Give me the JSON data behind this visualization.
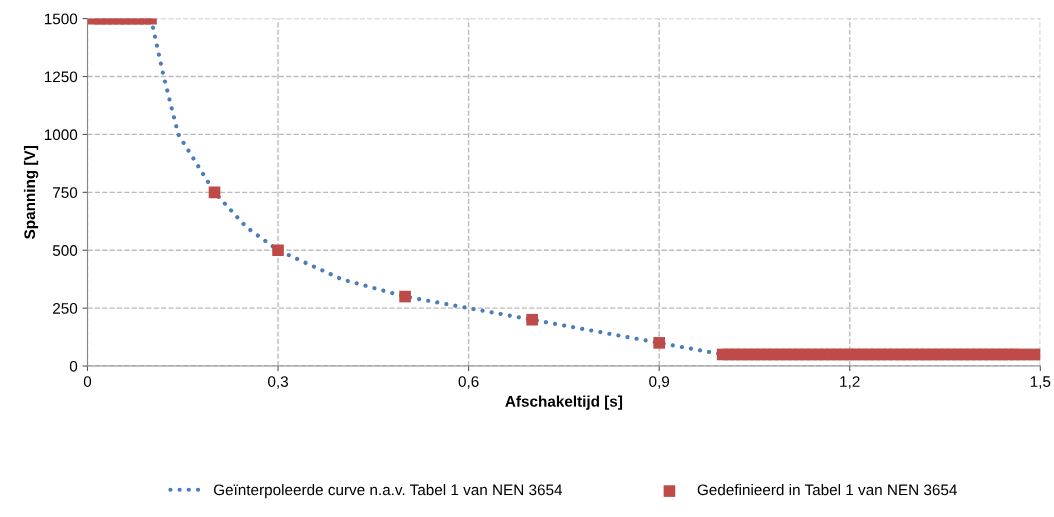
{
  "chart_data": {
    "type": "scatter",
    "xlabel": "Afschakeltijd [s]",
    "ylabel": "Spanning [V]",
    "xlim": [
      0,
      1.5
    ],
    "ylim": [
      0,
      1500
    ],
    "xticks": [
      {
        "value": 0,
        "label": "0"
      },
      {
        "value": 0.3,
        "label": "0,3"
      },
      {
        "value": 0.6,
        "label": "0,6"
      },
      {
        "value": 0.9,
        "label": "0,9"
      },
      {
        "value": 1.2,
        "label": "1,2"
      },
      {
        "value": 1.5,
        "label": "1,5"
      }
    ],
    "yticks": [
      0,
      250,
      500,
      750,
      1000,
      1250,
      1500
    ],
    "grid": true,
    "legend": "bottom",
    "series": [
      {
        "name": "Geïnterpoleerde curve n.a.v. Tabel 1 van NEN 3654",
        "type": "line",
        "color": "#4a7ebb",
        "line_style": "dotted",
        "marker": "none",
        "x": [
          0.1,
          0.12,
          0.143,
          0.2,
          0.25,
          0.3,
          0.4,
          0.5,
          0.6,
          0.7,
          0.8,
          0.9,
          1.0
        ],
        "values": [
          1500,
          1250,
          1000,
          750,
          600,
          500,
          375,
          300,
          250,
          200,
          150,
          100,
          50
        ]
      },
      {
        "name": "Gedefinieerd in Tabel 1 van NEN 3654",
        "color": "#be4b48",
        "marker": "square",
        "x": [
          0.01,
          0.02,
          0.03,
          0.04,
          0.05,
          0.06,
          0.07,
          0.08,
          0.09,
          0.1,
          0.2,
          0.3,
          0.5,
          0.7,
          0.9,
          1.0,
          1.01,
          1.02,
          1.03,
          1.04,
          1.05,
          1.06,
          1.07,
          1.08,
          1.09,
          1.1,
          1.11,
          1.12,
          1.13,
          1.14,
          1.15,
          1.16,
          1.17,
          1.18,
          1.19,
          1.2,
          1.21,
          1.22,
          1.23,
          1.24,
          1.25,
          1.26,
          1.27,
          1.28,
          1.29,
          1.3,
          1.31,
          1.32,
          1.33,
          1.34,
          1.35,
          1.36,
          1.37,
          1.38,
          1.39,
          1.4,
          1.41,
          1.42,
          1.43,
          1.44,
          1.45,
          1.46,
          1.47,
          1.48,
          1.49,
          1.5
        ],
        "values": [
          1500,
          1500,
          1500,
          1500,
          1500,
          1500,
          1500,
          1500,
          1500,
          1500,
          750,
          500,
          300,
          200,
          100,
          50,
          50,
          50,
          50,
          50,
          50,
          50,
          50,
          50,
          50,
          50,
          50,
          50,
          50,
          50,
          50,
          50,
          50,
          50,
          50,
          50,
          50,
          50,
          50,
          50,
          50,
          50,
          50,
          50,
          50,
          50,
          50,
          50,
          50,
          50,
          50,
          50,
          50,
          50,
          50,
          50,
          50,
          50,
          50,
          50,
          50,
          50,
          50,
          50,
          50,
          50
        ]
      }
    ]
  }
}
